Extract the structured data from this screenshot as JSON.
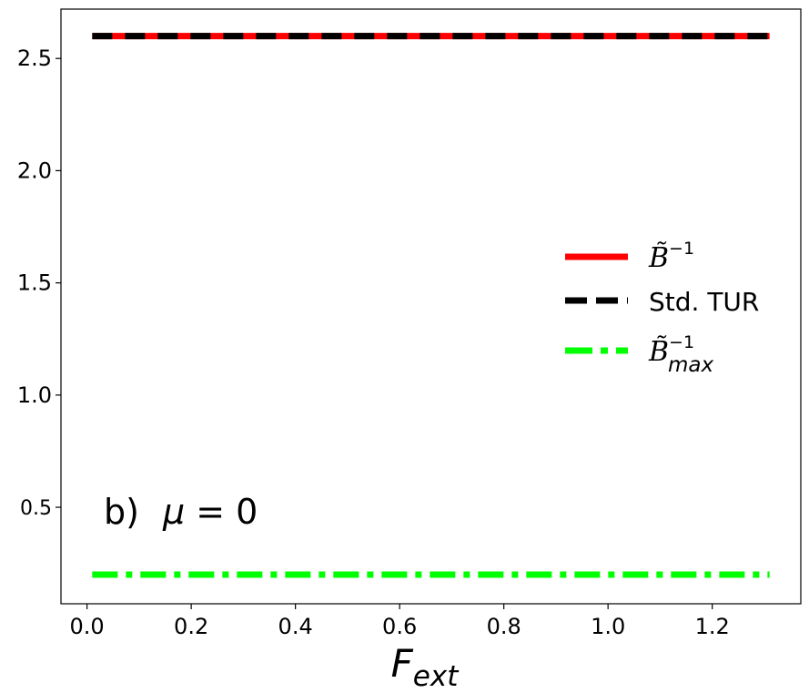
{
  "chart_data": {
    "type": "line",
    "xlabel": "F",
    "xlabel_subscript": "ext",
    "ylabel": "",
    "xlim": [
      -0.05,
      1.37
    ],
    "ylim": [
      0.07,
      2.72
    ],
    "xticks": [
      0.0,
      0.2,
      0.4,
      0.6,
      0.8,
      1.0,
      1.2
    ],
    "xtick_labels": [
      "0.0",
      "0.2",
      "0.4",
      "0.6",
      "0.8",
      "1.0",
      "1.2"
    ],
    "yticks": [
      0.5,
      1.0,
      1.5,
      2.0,
      2.5
    ],
    "ytick_labels": [
      "0.5",
      "1.0",
      "1.5",
      "2.0",
      "2.5"
    ],
    "grid": false,
    "legend_position": "center-right",
    "annotation": {
      "label": "b)",
      "symbol": "μ",
      "relation": " = 0"
    },
    "series": [
      {
        "name": "B̃⁻¹",
        "legend_base": "B̃",
        "legend_sup": "−1",
        "legend_sub": "",
        "color": "#ff0000",
        "linestyle": "solid",
        "x": [
          0.01,
          1.31
        ],
        "y": [
          2.6,
          2.6
        ]
      },
      {
        "name": "Std. TUR",
        "legend_base": "Std. TUR",
        "legend_sup": "",
        "legend_sub": "",
        "color": "#000000",
        "linestyle": "dashed",
        "x": [
          0.01,
          1.31
        ],
        "y": [
          2.6,
          2.6
        ]
      },
      {
        "name": "B̃⁻¹max",
        "legend_base": "B̃",
        "legend_sup": "−1",
        "legend_sub": "max",
        "color": "#00ff00",
        "linestyle": "dashdot",
        "x": [
          0.01,
          1.31
        ],
        "y": [
          0.2,
          0.2
        ]
      }
    ]
  }
}
